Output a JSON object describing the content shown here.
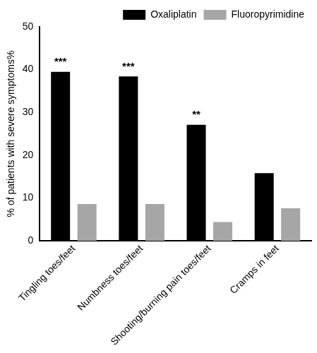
{
  "chart_data": {
    "type": "bar",
    "y_label": "% of patients with severe symptoms%",
    "categories": [
      "Tingling toes/feet",
      "Numbness toes/feet",
      "Shooting/burning pain toes/feet",
      "Cramps in feet"
    ],
    "series": [
      {
        "name": "Oxaliplatin",
        "color": "#000000",
        "values": [
          39.5,
          38.4,
          27.1,
          15.8
        ]
      },
      {
        "name": "Fluoropyrimidine",
        "color": "#a6a6a6",
        "values": [
          8.6,
          8.6,
          4.4,
          7.6
        ]
      }
    ],
    "annotations": [
      {
        "category": "Tingling toes/feet",
        "series": "Oxaliplatin",
        "text": "***"
      },
      {
        "category": "Numbness toes/feet",
        "series": "Oxaliplatin",
        "text": "***"
      },
      {
        "category": "Shooting/burning pain toes/feet",
        "series": "Oxaliplatin",
        "text": "**"
      }
    ],
    "ylim": [
      0,
      50
    ],
    "yticks": [
      0,
      10,
      20,
      30,
      40,
      50
    ],
    "grid": false,
    "legend": "upper right"
  }
}
